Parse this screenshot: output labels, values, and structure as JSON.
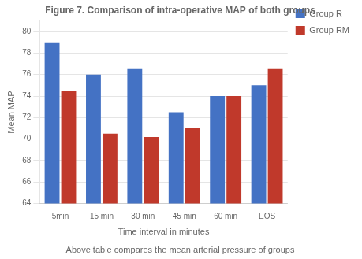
{
  "chart_data": {
    "type": "bar",
    "title": "Figure 7. Comparison of intra-operative MAP of both groups",
    "annotations": [
      "Above table compares the mean arterial pressure of groups"
    ],
    "xlabel": "Time interval in minutes",
    "ylabel": "Mean MAP",
    "categories": [
      "5min",
      "15 min",
      "30 min",
      "45 min",
      "60 min",
      "EOS"
    ],
    "series": [
      {
        "name": "Group R",
        "color": "#4472C4",
        "values": [
          79.0,
          76.0,
          76.5,
          72.5,
          74.0,
          75.0
        ]
      },
      {
        "name": "Group RM",
        "color": "#C0392B",
        "values": [
          74.5,
          70.5,
          70.2,
          71.0,
          74.0,
          76.5
        ]
      }
    ],
    "ylim": [
      64,
      81
    ],
    "yticks": [
      64,
      66,
      68,
      70,
      72,
      74,
      76,
      78,
      80
    ],
    "grid": true,
    "legend": "right"
  }
}
